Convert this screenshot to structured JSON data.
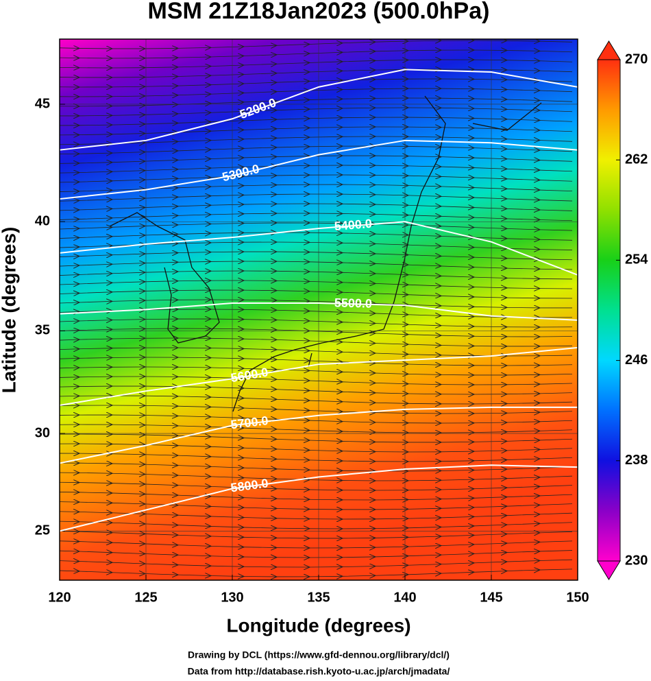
{
  "chart_data": {
    "type": "map",
    "title": "MSM 21Z18Jan2023 (500.0hPa)",
    "x_label": "Longitude (degrees)",
    "y_label": "Latitude  (degrees)",
    "projection": "mercator",
    "xlim": [
      120,
      150
    ],
    "ylim": [
      22.4,
      47.6
    ],
    "xticks": [
      120,
      125,
      130,
      135,
      140,
      145,
      150
    ],
    "yticks": [
      25,
      30,
      35,
      40,
      45
    ],
    "contour_lons": [
      120,
      125,
      130,
      135,
      140,
      145,
      150
    ],
    "contours": [
      {
        "label": "5200.0",
        "lats": [
          43.1,
          43.5,
          44.4,
          45.7,
          46.4,
          46.3,
          45.7
        ]
      },
      {
        "label": "5300.0",
        "lats": [
          41.0,
          41.4,
          42.0,
          42.9,
          43.5,
          43.4,
          43.1
        ]
      },
      {
        "label": "5400.0",
        "lats": [
          38.6,
          39.0,
          39.3,
          39.7,
          40.0,
          39.1,
          37.6
        ]
      },
      {
        "label": "5500.0",
        "lats": [
          35.8,
          36.0,
          36.3,
          36.3,
          36.2,
          35.7,
          35.5
        ]
      },
      {
        "label": "5600.0",
        "lats": [
          31.4,
          32.1,
          32.7,
          33.4,
          33.6,
          33.8,
          34.2
        ]
      },
      {
        "label": "5700.0",
        "lats": [
          28.5,
          29.4,
          30.4,
          30.9,
          31.2,
          31.3,
          31.3
        ]
      },
      {
        "label": "5800.0",
        "lats": [
          25.0,
          26.1,
          27.2,
          27.8,
          28.2,
          28.4,
          28.3
        ]
      }
    ],
    "colorbar": {
      "range": [
        230,
        270
      ],
      "ticks": [
        230,
        238,
        246,
        254,
        262,
        270
      ],
      "colors": [
        "#ff00cc",
        "#8a00c8",
        "#1010e0",
        "#0070ff",
        "#00d8ff",
        "#00e090",
        "#18d018",
        "#90e000",
        "#f0f000",
        "#ff9a00",
        "#ff3010"
      ]
    },
    "footer": [
      "Drawing by DCL (https://www.gfd-dennou.org/library/dcl/)",
      "Data from http://database.rish.kyoto-u.ac.jp/arch/jmadata/"
    ]
  }
}
